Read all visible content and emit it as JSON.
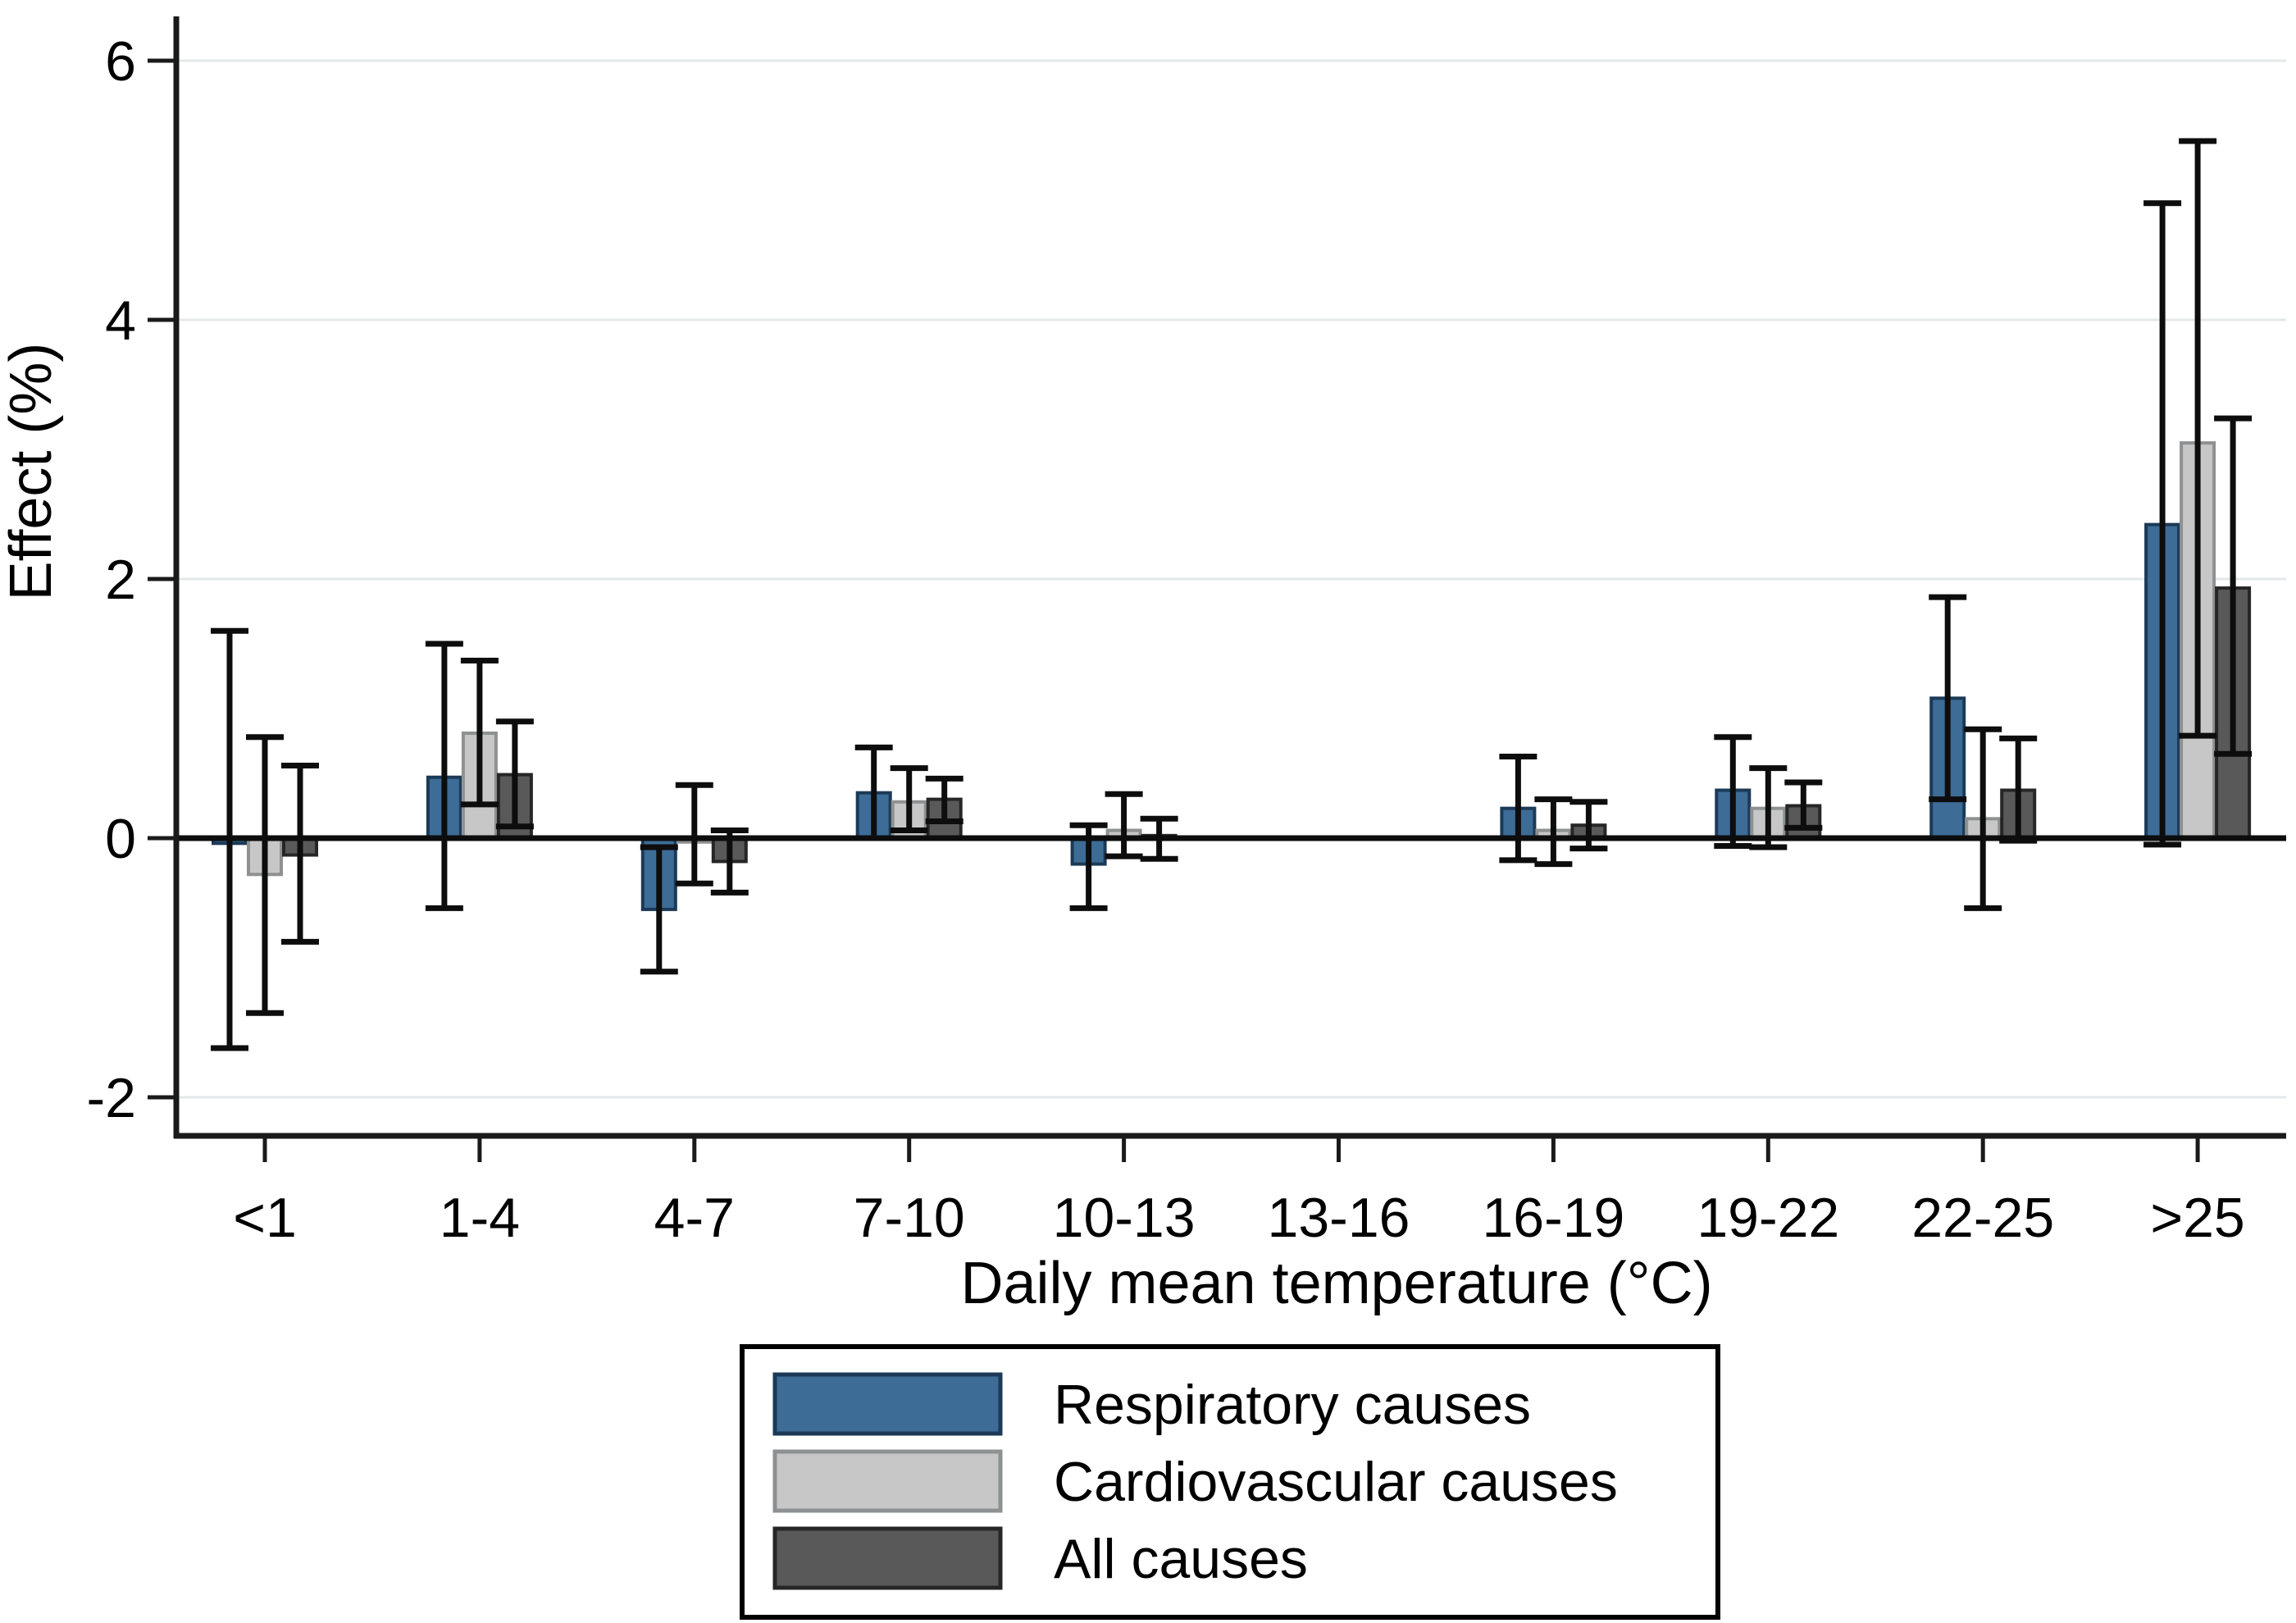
{
  "figure": {
    "kind": "grouped bar chart with 95% CI error bars",
    "background_color": "#ffffff"
  },
  "y_axis": {
    "title": "Effect (%)",
    "tick_labels": [
      "6",
      "4",
      "2",
      "0",
      "-2"
    ],
    "tick_values": [
      6,
      4,
      2,
      0,
      -2
    ],
    "gridline_values": [
      6,
      4,
      2,
      -2
    ],
    "gridline_color": "#e4e8ea",
    "range": [
      -2.3,
      6.34
    ]
  },
  "x_axis": {
    "title": "Daily mean temperature (°C)",
    "categories": [
      "<1",
      "1-4",
      "4-7",
      "7-10",
      "10-13",
      "13-16",
      "16-19",
      "19-22",
      "22-25",
      ">25"
    ]
  },
  "legend": {
    "position": "bottom-center-boxed",
    "entries": [
      "Respiratory causes",
      "Cardiovascular causes",
      "All causes"
    ]
  },
  "chart_data": {
    "type": "bar",
    "title": "",
    "xlabel": "Daily mean temperature (°C)",
    "ylabel": "Effect (%)",
    "categories": [
      "<1",
      "1-4",
      "4-7",
      "7-10",
      "10-13",
      "13-16",
      "16-19",
      "19-22",
      "22-25",
      ">25"
    ],
    "ylim": [
      -2.3,
      6.34
    ],
    "y_ticks": [
      -2,
      0,
      2,
      4,
      6
    ],
    "grid": "horizontal light gridlines at y ticks, solid black line at y=0",
    "legend_position": "bottom",
    "reference_category": "13-16",
    "error_bar_color": "#0d0d0d",
    "series": [
      {
        "name": "Respiratory causes",
        "fill": "#3d6c96",
        "border": "#1c3a57",
        "values": [
          -0.04,
          0.47,
          -0.55,
          0.35,
          -0.2,
          null,
          0.23,
          0.37,
          1.08,
          2.42
        ],
        "ci_low": [
          -1.62,
          -0.54,
          -1.03,
          0.0,
          -0.54,
          null,
          -0.17,
          -0.06,
          0.3,
          -0.05
        ],
        "ci_high": [
          1.6,
          1.5,
          -0.07,
          0.7,
          0.1,
          null,
          0.63,
          0.78,
          1.86,
          4.9
        ]
      },
      {
        "name": "Cardiovascular causes",
        "fill": "#c7c7c7",
        "border": "#8e9192",
        "values": [
          -0.28,
          0.81,
          -0.03,
          0.28,
          0.06,
          null,
          0.06,
          0.23,
          0.15,
          3.05
        ],
        "ci_low": [
          -1.35,
          0.26,
          -0.35,
          0.06,
          -0.14,
          null,
          -0.2,
          -0.07,
          -0.54,
          0.79
        ],
        "ci_high": [
          0.78,
          1.37,
          0.41,
          0.54,
          0.34,
          null,
          0.3,
          0.54,
          0.84,
          5.38
        ]
      },
      {
        "name": "All causes",
        "fill": "#595959",
        "border": "#262626",
        "values": [
          -0.13,
          0.49,
          -0.18,
          0.3,
          0.02,
          null,
          0.1,
          0.25,
          0.37,
          1.93
        ],
        "ci_low": [
          -0.8,
          0.09,
          -0.42,
          0.13,
          -0.16,
          null,
          -0.08,
          0.08,
          -0.02,
          0.65
        ],
        "ci_high": [
          0.56,
          0.9,
          0.06,
          0.46,
          0.15,
          null,
          0.28,
          0.43,
          0.77,
          3.24
        ]
      }
    ]
  }
}
